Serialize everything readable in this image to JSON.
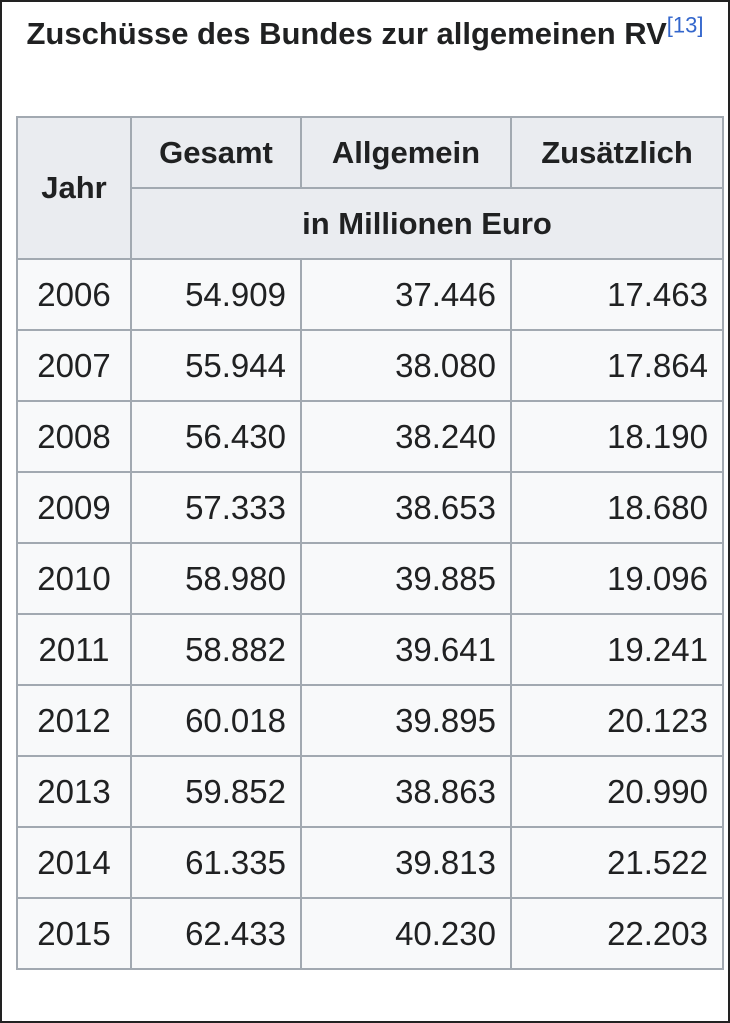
{
  "caption": {
    "title": "Zuschüsse des Bundes zur allgemeinen RV",
    "ref": "[13]"
  },
  "headers": {
    "year": "Jahr",
    "total": "Gesamt",
    "general": "Allgemein",
    "additional": "Zusätzlich",
    "unit": "in Millionen Euro"
  },
  "rows": [
    {
      "year": "2006",
      "total": "54.909",
      "general": "37.446",
      "additional": "17.463"
    },
    {
      "year": "2007",
      "total": "55.944",
      "general": "38.080",
      "additional": "17.864"
    },
    {
      "year": "2008",
      "total": "56.430",
      "general": "38.240",
      "additional": "18.190"
    },
    {
      "year": "2009",
      "total": "57.333",
      "general": "38.653",
      "additional": "18.680"
    },
    {
      "year": "2010",
      "total": "58.980",
      "general": "39.885",
      "additional": "19.096"
    },
    {
      "year": "2011",
      "total": "58.882",
      "general": "39.641",
      "additional": "19.241"
    },
    {
      "year": "2012",
      "total": "60.018",
      "general": "39.895",
      "additional": "20.123"
    },
    {
      "year": "2013",
      "total": "59.852",
      "general": "38.863",
      "additional": "20.990"
    },
    {
      "year": "2014",
      "total": "61.335",
      "general": "39.813",
      "additional": "21.522"
    },
    {
      "year": "2015",
      "total": "62.433",
      "general": "40.230",
      "additional": "22.203"
    }
  ],
  "colors": {
    "header_bg": "#eaecf0",
    "cell_bg": "#f8f9fa",
    "border": "#a2a9b1",
    "link": "#3366cc"
  }
}
